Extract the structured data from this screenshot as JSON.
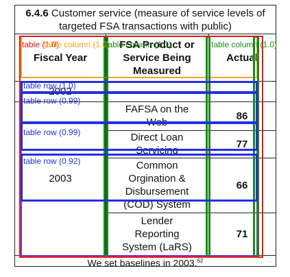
{
  "title": {
    "section_number": "6.4.6",
    "line1": "Customer service (measure of service levels of",
    "line2": "targeted FSA transactions with public)"
  },
  "columns": {
    "fiscal_year": "Fiscal Year",
    "product_line1": "FSA Product or",
    "product_line2": "Service Being",
    "product_line3": "Measured",
    "actual": "Actual"
  },
  "rows": [
    {
      "year": "2002",
      "service": "---",
      "actual": "---"
    },
    {
      "year": "2003",
      "service_line1": "FAFSA on the",
      "service_line2": "Web",
      "actual": "86"
    },
    {
      "service_line1": "Direct Loan",
      "service_line2": "Servicing",
      "actual": "77"
    },
    {
      "service_line1": "Common",
      "service_line2": "Orgination &",
      "service_line3": "Disbursement",
      "service_line4": "(COD) System",
      "actual": "66"
    },
    {
      "service_line1": "Lender",
      "service_line2": "Reporting",
      "service_line3": "System (LaRS)",
      "actual": "71"
    }
  ],
  "footer": {
    "text": "We set baselines in 2003.",
    "footnote": "62"
  },
  "annotations": {
    "table": "table (1.0)",
    "column_orange": "table column (1.0)",
    "column_green_left": "table column (1.0)",
    "column_green_right": "table column (1.0)",
    "row1": "table row (1.0)",
    "row2": "table row (0.99)",
    "row3": "table row (0.99)",
    "row4": "table row (0.92)"
  },
  "colors": {
    "table": "#e81818",
    "column_header": "#f3a51c",
    "column": "#1b8a1b",
    "row": "#2230e0",
    "cell": "#7a33d6"
  }
}
